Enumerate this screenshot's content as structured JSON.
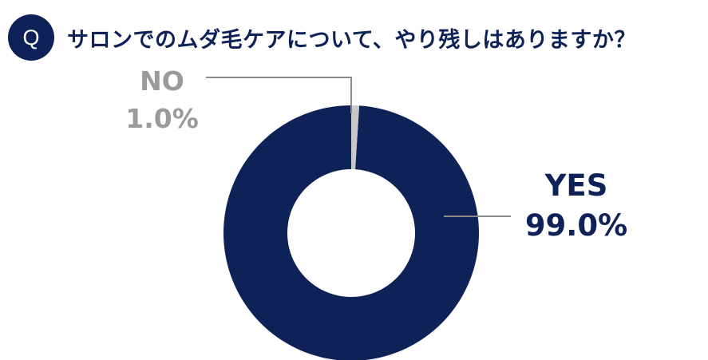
{
  "header": {
    "badge": "Q",
    "question": "サロンでのムダ毛ケアについて、やり残しはありますか？"
  },
  "colors": {
    "yes": "#0f2257",
    "no": "#c8c8c8",
    "no_text": "#9a9a9a",
    "leader": "#8a8a8a"
  },
  "chart_data": {
    "type": "pie",
    "donut": true,
    "categories": [
      "YES",
      "NO"
    ],
    "values": [
      99.0,
      1.0
    ],
    "value_labels": [
      "99.0%",
      "1.0%"
    ]
  }
}
